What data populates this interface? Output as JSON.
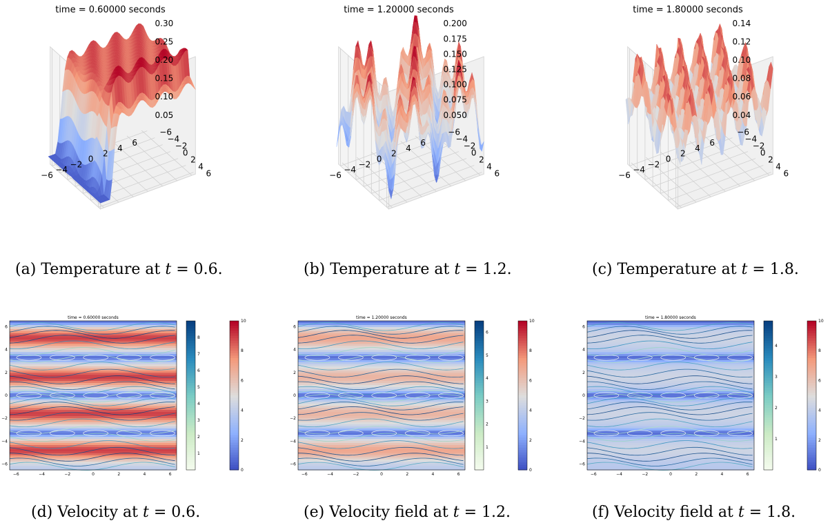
{
  "colors": {
    "surface_high": "#b40426",
    "surface_mid": "#dddddd",
    "surface_low": "#3b4cc0",
    "streamline_low": "#f7fcf0",
    "streamline_high": "#084081"
  },
  "chart_data": [
    {
      "id": "a",
      "type": "surface3d",
      "title": "time = 0.60000 seconds",
      "caption_prefix": "(a) Temperature at ",
      "caption_var": "t",
      "caption_suffix": " = 0.6.",
      "x_ticks": [
        "−6",
        "−4",
        "−2",
        "0",
        "2",
        "4",
        "6"
      ],
      "y_ticks": [
        "−6",
        "−4",
        "−2",
        "0",
        "2",
        "4",
        "6"
      ],
      "z_ticks": [
        "0.05",
        "0.10",
        "0.15",
        "0.20",
        "0.25",
        "0.30"
      ],
      "zlim": [
        0.02,
        0.33
      ]
    },
    {
      "id": "b",
      "type": "surface3d",
      "title": "time = 1.20000 seconds",
      "caption_prefix": "(b) Temperature at ",
      "caption_var": "t",
      "caption_suffix": " = 1.2.",
      "x_ticks": [
        "−6",
        "−4",
        "−2",
        "0",
        "2",
        "4",
        "6"
      ],
      "y_ticks": [
        "−6",
        "−4",
        "−2",
        "0",
        "2",
        "4",
        "6"
      ],
      "z_ticks": [
        "0.050",
        "0.075",
        "0.100",
        "0.125",
        "0.150",
        "0.175",
        "0.200"
      ],
      "zlim": [
        0.04,
        0.21
      ]
    },
    {
      "id": "c",
      "type": "surface3d",
      "title": "time = 1.80000 seconds",
      "caption_prefix": "(c) Temperature at ",
      "caption_var": "t",
      "caption_suffix": " = 1.8.",
      "x_ticks": [
        "−6",
        "−4",
        "−2",
        "0",
        "2",
        "4",
        "6"
      ],
      "y_ticks": [
        "−6",
        "−4",
        "−2",
        "0",
        "2",
        "4",
        "6"
      ],
      "z_ticks": [
        "0.04",
        "0.06",
        "0.08",
        "0.10",
        "0.12",
        "0.14"
      ],
      "zlim": [
        0.03,
        0.15
      ]
    },
    {
      "id": "d",
      "type": "heatmap",
      "title": "time = 0.60000 seconds",
      "caption_prefix": "(d) Velocity at ",
      "caption_var": "t",
      "caption_suffix": " = 0.6.",
      "x_ticks": [
        "−6",
        "−4",
        "−2",
        "0",
        "2",
        "4",
        "6"
      ],
      "y_ticks": [
        "6",
        "4",
        "2",
        "0",
        "−2",
        "−4",
        "−6"
      ],
      "stream_cbar_ticks": [
        "8",
        "7",
        "6",
        "5",
        "4",
        "3",
        "2",
        "1"
      ],
      "heat_cbar_ticks": [
        "10",
        "8",
        "6",
        "4",
        "2",
        "0"
      ],
      "stream_max": 9,
      "bands": [
        {
          "y": 5.0,
          "peak": 9
        },
        {
          "y": 1.6,
          "peak": 9
        },
        {
          "y": -1.6,
          "peak": 9
        },
        {
          "y": -4.8,
          "peak": 9
        }
      ]
    },
    {
      "id": "e",
      "type": "heatmap",
      "title": "time = 1.20000 seconds",
      "caption_prefix": "(e) Velocity field at ",
      "caption_var": "t",
      "caption_suffix": " = 1.2.",
      "x_ticks": [
        "−6",
        "−4",
        "−2",
        "0",
        "2",
        "4",
        "6"
      ],
      "y_ticks": [
        "6",
        "4",
        "2",
        "0",
        "−2",
        "−4",
        "−6"
      ],
      "stream_cbar_ticks": [
        "6",
        "5",
        "4",
        "3",
        "2",
        "1"
      ],
      "heat_cbar_ticks": [
        "10",
        "8",
        "6",
        "4",
        "2",
        "0"
      ],
      "stream_max": 6.5,
      "bands": [
        {
          "y": 5.0,
          "peak": 7
        },
        {
          "y": 1.6,
          "peak": 6.5
        },
        {
          "y": -1.6,
          "peak": 6.5
        },
        {
          "y": -4.8,
          "peak": 7
        }
      ]
    },
    {
      "id": "f",
      "type": "heatmap",
      "title": "time = 1.80000 seconds",
      "caption_prefix": "(f) Velocity field at ",
      "caption_var": "t",
      "caption_suffix": " = 1.8.",
      "x_ticks": [
        "−6",
        "−4",
        "−2",
        "0",
        "2",
        "4",
        "6"
      ],
      "y_ticks": [
        "6",
        "4",
        "2",
        "0",
        "−2",
        "−4",
        "−6"
      ],
      "stream_cbar_ticks": [
        "4",
        "3",
        "2",
        "1"
      ],
      "heat_cbar_ticks": [
        "10",
        "8",
        "6",
        "4",
        "2",
        "0"
      ],
      "stream_max": 4.8,
      "bands": [
        {
          "y": 5.0,
          "peak": 4.5
        },
        {
          "y": 1.6,
          "peak": 4.5
        },
        {
          "y": -1.6,
          "peak": 4.5
        },
        {
          "y": -4.8,
          "peak": 4.5
        }
      ]
    }
  ]
}
